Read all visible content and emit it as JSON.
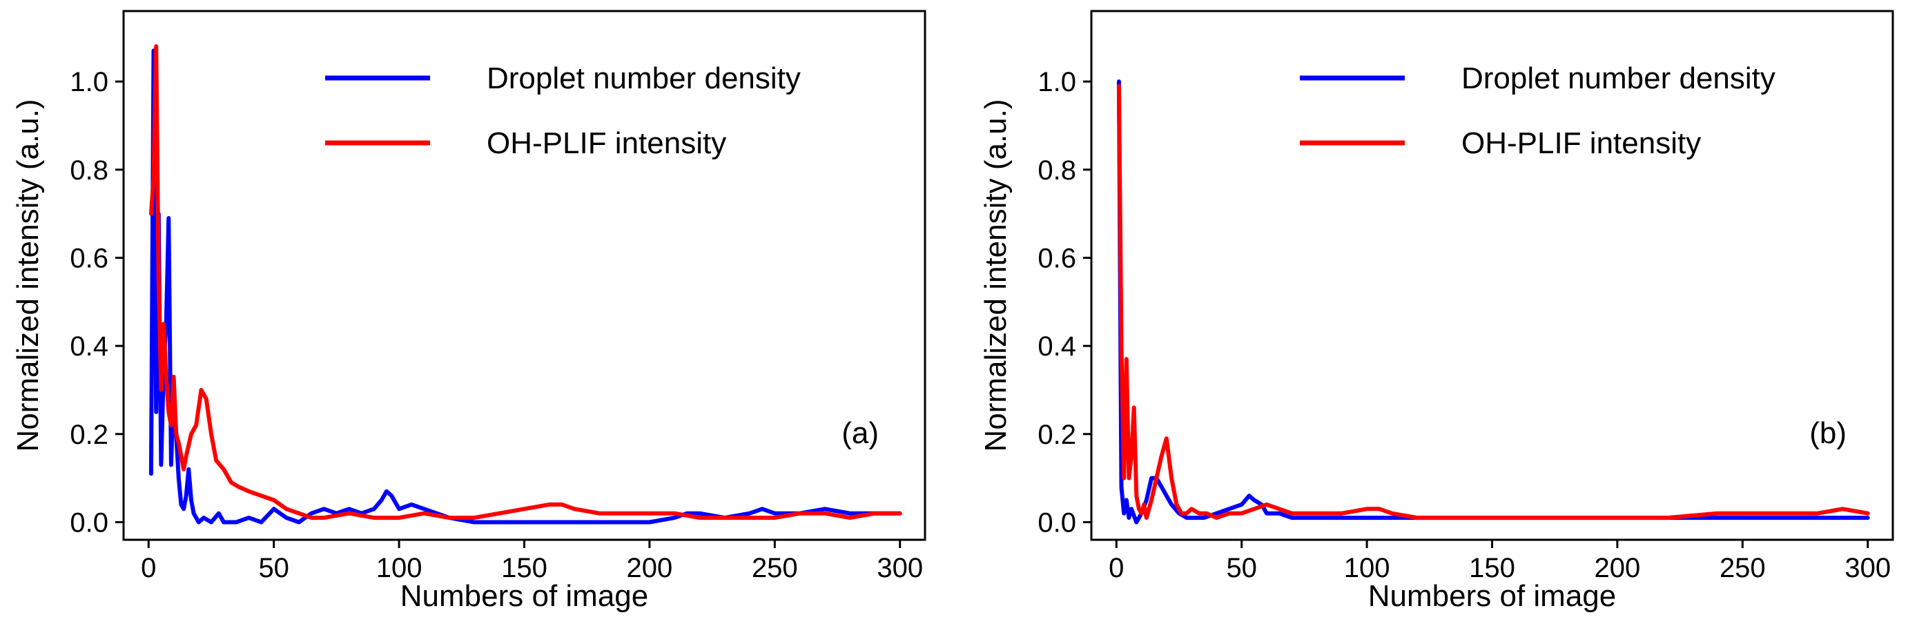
{
  "chart_data": [
    {
      "type": "line",
      "panel_label": "(a)",
      "xlabel": "Numbers of image",
      "ylabel": "Normalized intensity (a.u.)",
      "xlim": [
        -10,
        310
      ],
      "ylim": [
        -0.04,
        1.16
      ],
      "xticks": [
        0,
        50,
        100,
        150,
        200,
        250,
        300
      ],
      "yticks": [
        0.0,
        0.2,
        0.4,
        0.6,
        0.8,
        1.0
      ],
      "ytick_labels": [
        "0.0",
        "0.2",
        "0.4",
        "0.6",
        "0.8",
        "1.0"
      ],
      "legend_position": "top-right",
      "series": [
        {
          "name": "Droplet number density",
          "color": "#0000ff",
          "x": [
            1,
            2,
            3,
            4,
            5,
            6,
            7,
            8,
            9,
            10,
            11,
            12,
            13,
            14,
            15,
            16,
            17,
            18,
            19,
            20,
            22,
            25,
            28,
            30,
            35,
            40,
            45,
            50,
            55,
            60,
            65,
            70,
            75,
            80,
            85,
            90,
            93,
            95,
            97,
            100,
            105,
            110,
            115,
            120,
            130,
            140,
            150,
            160,
            170,
            180,
            190,
            200,
            210,
            215,
            220,
            230,
            240,
            245,
            250,
            260,
            270,
            280,
            290,
            300
          ],
          "y": [
            0.11,
            1.07,
            0.25,
            0.7,
            0.13,
            0.35,
            0.45,
            0.69,
            0.13,
            0.3,
            0.2,
            0.1,
            0.04,
            0.03,
            0.06,
            0.12,
            0.05,
            0.02,
            0.01,
            0.0,
            0.01,
            0.0,
            0.02,
            0.0,
            0.0,
            0.01,
            0.0,
            0.03,
            0.01,
            0.0,
            0.02,
            0.03,
            0.02,
            0.03,
            0.02,
            0.03,
            0.05,
            0.07,
            0.06,
            0.03,
            0.04,
            0.03,
            0.02,
            0.01,
            0.0,
            0.0,
            0.0,
            0.0,
            0.0,
            0.0,
            0.0,
            0.0,
            0.01,
            0.02,
            0.02,
            0.01,
            0.02,
            0.03,
            0.02,
            0.02,
            0.03,
            0.02,
            0.02,
            0.02
          ]
        },
        {
          "name": "OH-PLIF intensity",
          "color": "#ff0000",
          "x": [
            1,
            2,
            3,
            4,
            5,
            6,
            7,
            8,
            9,
            10,
            11,
            12,
            13,
            14,
            15,
            17,
            19,
            21,
            23,
            25,
            27,
            30,
            33,
            36,
            40,
            45,
            50,
            55,
            60,
            65,
            70,
            80,
            90,
            100,
            110,
            120,
            130,
            140,
            150,
            160,
            165,
            170,
            180,
            190,
            200,
            210,
            220,
            230,
            240,
            250,
            260,
            270,
            280,
            290,
            300
          ],
          "y": [
            0.7,
            0.78,
            1.08,
            0.55,
            0.3,
            0.45,
            0.33,
            0.25,
            0.22,
            0.33,
            0.2,
            0.18,
            0.15,
            0.12,
            0.15,
            0.2,
            0.22,
            0.3,
            0.28,
            0.2,
            0.14,
            0.12,
            0.09,
            0.08,
            0.07,
            0.06,
            0.05,
            0.03,
            0.02,
            0.01,
            0.01,
            0.02,
            0.01,
            0.01,
            0.02,
            0.01,
            0.01,
            0.02,
            0.03,
            0.04,
            0.04,
            0.03,
            0.02,
            0.02,
            0.02,
            0.02,
            0.01,
            0.01,
            0.01,
            0.01,
            0.02,
            0.02,
            0.01,
            0.02,
            0.02
          ]
        }
      ]
    },
    {
      "type": "line",
      "panel_label": "(b)",
      "xlabel": "Numbers of image",
      "ylabel": "Normalized intensity (a.u.)",
      "xlim": [
        -10,
        310
      ],
      "ylim": [
        -0.04,
        1.16
      ],
      "xticks": [
        0,
        50,
        100,
        150,
        200,
        250,
        300
      ],
      "yticks": [
        0.0,
        0.2,
        0.4,
        0.6,
        0.8,
        1.0
      ],
      "ytick_labels": [
        "0.0",
        "0.2",
        "0.4",
        "0.6",
        "0.8",
        "1.0"
      ],
      "legend_position": "top-right",
      "series": [
        {
          "name": "Droplet number density",
          "color": "#0000ff",
          "x": [
            1,
            2,
            3,
            4,
            5,
            6,
            8,
            10,
            12,
            14,
            16,
            18,
            20,
            22,
            25,
            28,
            30,
            35,
            40,
            45,
            50,
            53,
            55,
            58,
            60,
            65,
            70,
            80,
            90,
            100,
            110,
            120,
            140,
            160,
            180,
            200,
            220,
            240,
            260,
            280,
            300
          ],
          "y": [
            1.0,
            0.08,
            0.02,
            0.05,
            0.01,
            0.03,
            0.0,
            0.02,
            0.05,
            0.1,
            0.1,
            0.08,
            0.06,
            0.04,
            0.02,
            0.01,
            0.01,
            0.01,
            0.02,
            0.03,
            0.04,
            0.06,
            0.05,
            0.04,
            0.02,
            0.02,
            0.01,
            0.01,
            0.01,
            0.01,
            0.01,
            0.01,
            0.01,
            0.01,
            0.01,
            0.01,
            0.01,
            0.01,
            0.01,
            0.01,
            0.01
          ]
        },
        {
          "name": "OH-PLIF intensity",
          "color": "#ff0000",
          "x": [
            1,
            2,
            3,
            4,
            5,
            6,
            7,
            8,
            9,
            10,
            11,
            12,
            14,
            16,
            18,
            20,
            22,
            24,
            26,
            28,
            30,
            33,
            36,
            40,
            45,
            50,
            55,
            60,
            65,
            70,
            80,
            90,
            100,
            105,
            110,
            120,
            140,
            160,
            180,
            200,
            220,
            240,
            260,
            280,
            290,
            300
          ],
          "y": [
            0.99,
            0.4,
            0.1,
            0.37,
            0.1,
            0.15,
            0.26,
            0.06,
            0.03,
            0.02,
            0.04,
            0.01,
            0.05,
            0.1,
            0.15,
            0.19,
            0.1,
            0.04,
            0.02,
            0.02,
            0.03,
            0.02,
            0.02,
            0.01,
            0.02,
            0.02,
            0.03,
            0.04,
            0.03,
            0.02,
            0.02,
            0.02,
            0.03,
            0.03,
            0.02,
            0.01,
            0.01,
            0.01,
            0.01,
            0.01,
            0.01,
            0.02,
            0.02,
            0.02,
            0.03,
            0.02
          ]
        }
      ]
    }
  ]
}
